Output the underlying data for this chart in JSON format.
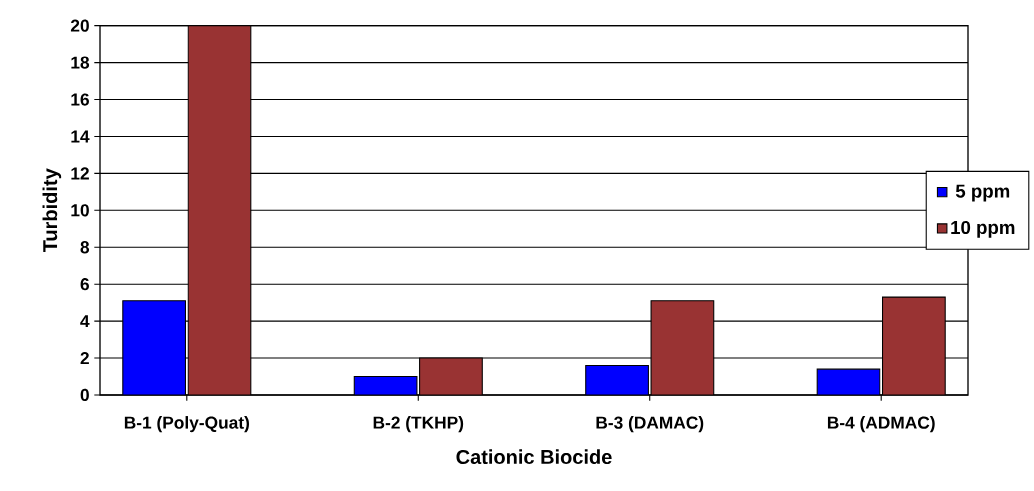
{
  "chart_data": {
    "type": "bar",
    "xlabel": "Cationic Biocide",
    "ylabel": "Turbidity",
    "categories": [
      "B-1 (Poly-Quat)",
      "B-2 (TKHP)",
      "B-3 (DAMAC)",
      "B-4 (ADMAC)"
    ],
    "series": [
      {
        "name": "5 ppm",
        "color": "#0000ff",
        "values": [
          5.1,
          1.0,
          1.6,
          1.4
        ]
      },
      {
        "name": "10 ppm",
        "color": "#993333",
        "values": [
          20,
          2.0,
          5.1,
          5.3
        ]
      }
    ],
    "ylim": [
      0,
      20
    ],
    "yticks": [
      0,
      2,
      4,
      6,
      8,
      10,
      12,
      14,
      16,
      18,
      20
    ],
    "grid": "y",
    "legend": "right"
  }
}
